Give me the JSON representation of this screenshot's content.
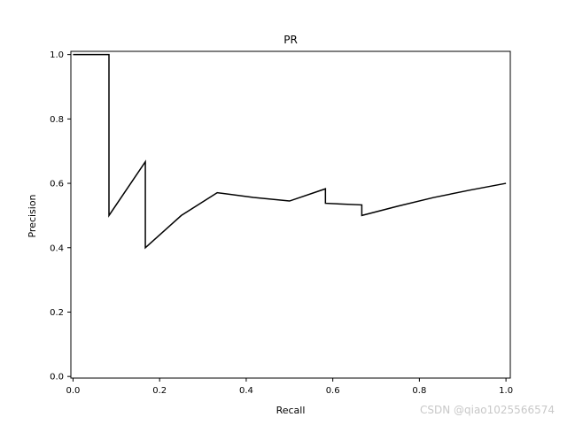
{
  "chart_data": {
    "type": "line",
    "title": "PR",
    "xlabel": "Recall",
    "ylabel": "Precision",
    "xlim": [
      -0.005,
      1.01
    ],
    "ylim": [
      -0.005,
      1.01
    ],
    "xticks": [
      "0.0",
      "0.2",
      "0.4",
      "0.6",
      "0.8",
      "1.0"
    ],
    "yticks": [
      "0.0",
      "0.2",
      "0.4",
      "0.6",
      "0.8",
      "1.0"
    ],
    "grid": false,
    "legend": "none",
    "series": [
      {
        "color": "#000000",
        "points": [
          [
            0.0,
            1.0
          ],
          [
            0.083,
            1.0
          ],
          [
            0.083,
            0.5
          ],
          [
            0.167,
            0.667
          ],
          [
            0.167,
            0.4
          ],
          [
            0.25,
            0.5
          ],
          [
            0.333,
            0.571
          ],
          [
            0.417,
            0.556
          ],
          [
            0.5,
            0.545
          ],
          [
            0.583,
            0.583
          ],
          [
            0.583,
            0.538
          ],
          [
            0.667,
            0.533
          ],
          [
            0.667,
            0.5
          ],
          [
            0.75,
            0.529
          ],
          [
            0.833,
            0.556
          ],
          [
            0.917,
            0.579
          ],
          [
            1.0,
            0.6
          ]
        ]
      }
    ]
  },
  "watermark": "CSDN @qiao1025566574"
}
